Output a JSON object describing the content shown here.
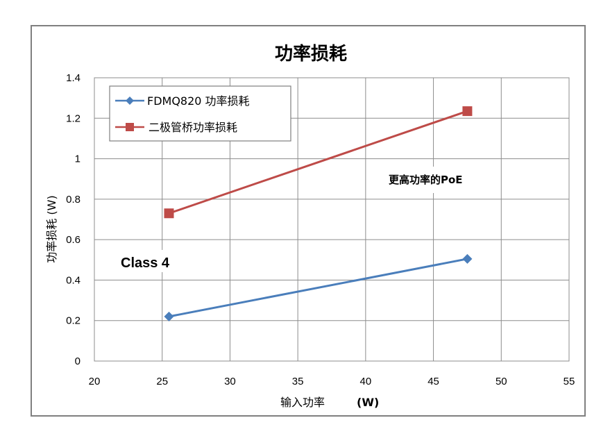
{
  "chart_data": {
    "type": "line",
    "title": "功率损耗",
    "xlabel": "输入功率",
    "xlabel_unit": "(W)",
    "ylabel": "功率损耗 (W)",
    "xlim": [
      20,
      55
    ],
    "ylim": [
      0,
      1.4
    ],
    "x_ticks": [
      "20",
      "25",
      "30",
      "35",
      "40",
      "45",
      "50",
      "55"
    ],
    "y_ticks": [
      "0",
      "0.2",
      "0.4",
      "0.6",
      "0.8",
      "1",
      "1.2",
      "1.4"
    ],
    "grid": true,
    "legend_position": "top-left",
    "series": [
      {
        "name": "FDMQ820  功率损耗",
        "color": "#4a7ebb",
        "marker": "diamond",
        "x": [
          25.5,
          47.5
        ],
        "y": [
          0.22,
          0.505
        ]
      },
      {
        "name": "二极管桥功率损耗",
        "color": "#be4b48",
        "marker": "square",
        "x": [
          25.5,
          47.5
        ],
        "y": [
          0.73,
          1.235
        ]
      }
    ],
    "annotations": [
      {
        "text": "更高功率的PoE"
      },
      {
        "text": "Class 4"
      }
    ]
  }
}
